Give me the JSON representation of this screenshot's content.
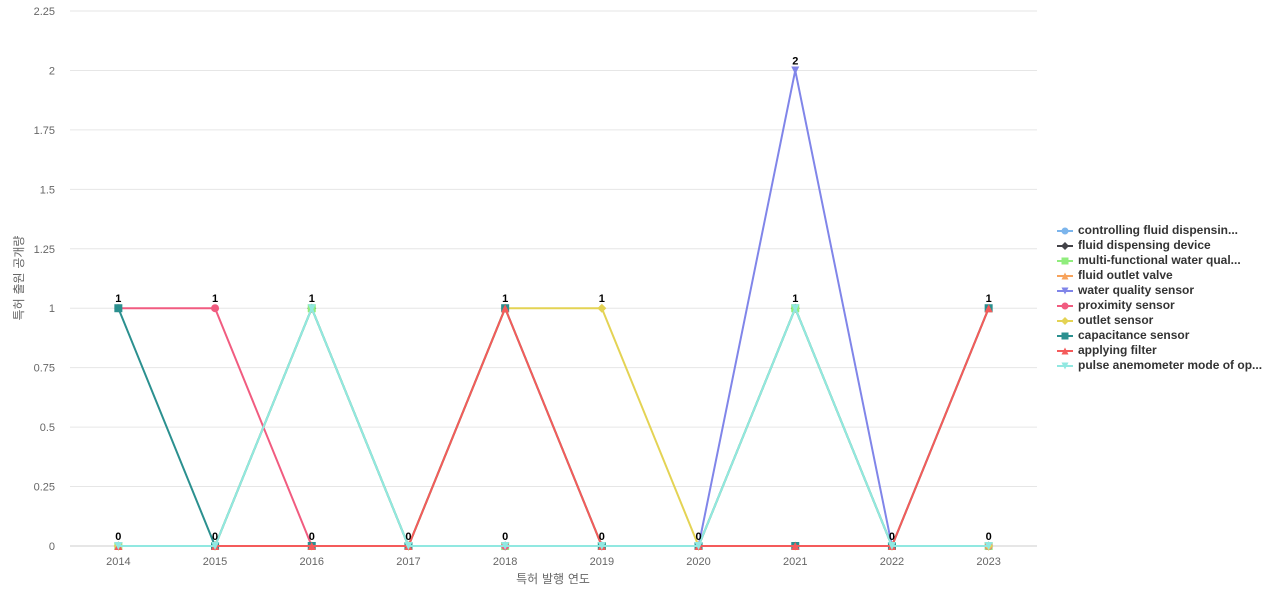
{
  "chart_data": {
    "type": "line",
    "title": "",
    "xlabel": "특허 발행 연도",
    "ylabel": "특허 출원 공개량",
    "x": [
      "2014",
      "2015",
      "2016",
      "2017",
      "2018",
      "2019",
      "2020",
      "2021",
      "2022",
      "2023"
    ],
    "ylim": [
      0,
      2.25
    ],
    "yticks": [
      "0",
      "0.25",
      "0.5",
      "0.75",
      "1",
      "1.25",
      "1.5",
      "1.75",
      "2",
      "2.25"
    ],
    "grid": true,
    "legend": "right",
    "series": [
      {
        "name": "controlling fluid dispensin...",
        "color": "#7cb5ec",
        "marker": "circle",
        "values": [
          0,
          0,
          1,
          0,
          0,
          0,
          0,
          1,
          0,
          0
        ]
      },
      {
        "name": "fluid dispensing device",
        "color": "#434348",
        "marker": "diamond",
        "values": [
          0,
          0,
          1,
          0,
          0,
          0,
          0,
          1,
          0,
          0
        ]
      },
      {
        "name": "multi-functional water qual...",
        "color": "#90ed7d",
        "marker": "square",
        "values": [
          0,
          0,
          1,
          0,
          0,
          0,
          0,
          1,
          0,
          0
        ]
      },
      {
        "name": "fluid outlet valve",
        "color": "#f7a35c",
        "marker": "triangle",
        "values": [
          0,
          0,
          0,
          0,
          1,
          0,
          0,
          0,
          0,
          1
        ]
      },
      {
        "name": "water quality sensor",
        "color": "#8085e9",
        "marker": "triangle-down",
        "values": [
          0,
          0,
          0,
          0,
          0,
          0,
          0,
          2,
          0,
          0
        ]
      },
      {
        "name": "proximity sensor",
        "color": "#f15c80",
        "marker": "circle",
        "values": [
          1,
          1,
          0,
          0,
          0,
          0,
          0,
          0,
          0,
          0
        ]
      },
      {
        "name": "outlet sensor",
        "color": "#e4d354",
        "marker": "diamond",
        "values": [
          0,
          0,
          0,
          0,
          1,
          1,
          0,
          0,
          0,
          0
        ]
      },
      {
        "name": "capacitance sensor",
        "color": "#2b908f",
        "marker": "square",
        "values": [
          1,
          0,
          0,
          0,
          1,
          0,
          0,
          0,
          0,
          1
        ]
      },
      {
        "name": "applying filter",
        "color": "#f45b5b",
        "marker": "triangle",
        "values": [
          0,
          0,
          0,
          0,
          1,
          0,
          0,
          0,
          0,
          1
        ]
      },
      {
        "name": "pulse anemometer mode of op...",
        "color": "#91e8e1",
        "marker": "triangle-down",
        "values": [
          0,
          0,
          1,
          0,
          0,
          0,
          0,
          1,
          0,
          0
        ]
      }
    ],
    "data_labels": {
      "x": [
        "2014",
        "2014",
        "2015",
        "2015",
        "2016",
        "2016",
        "2017",
        "2018",
        "2018",
        "2019",
        "2019",
        "2020",
        "2021",
        "2021",
        "2022",
        "2023",
        "2023"
      ],
      "y": [
        1,
        0,
        1,
        0,
        1,
        0,
        0,
        1,
        0,
        1,
        0,
        0,
        2,
        1,
        0,
        1,
        0
      ],
      "text": [
        "1",
        "0",
        "1",
        "0",
        "1",
        "0",
        "0",
        "1",
        "0",
        "1",
        "0",
        "0",
        "2",
        "1",
        "0",
        "1",
        "0"
      ]
    }
  }
}
